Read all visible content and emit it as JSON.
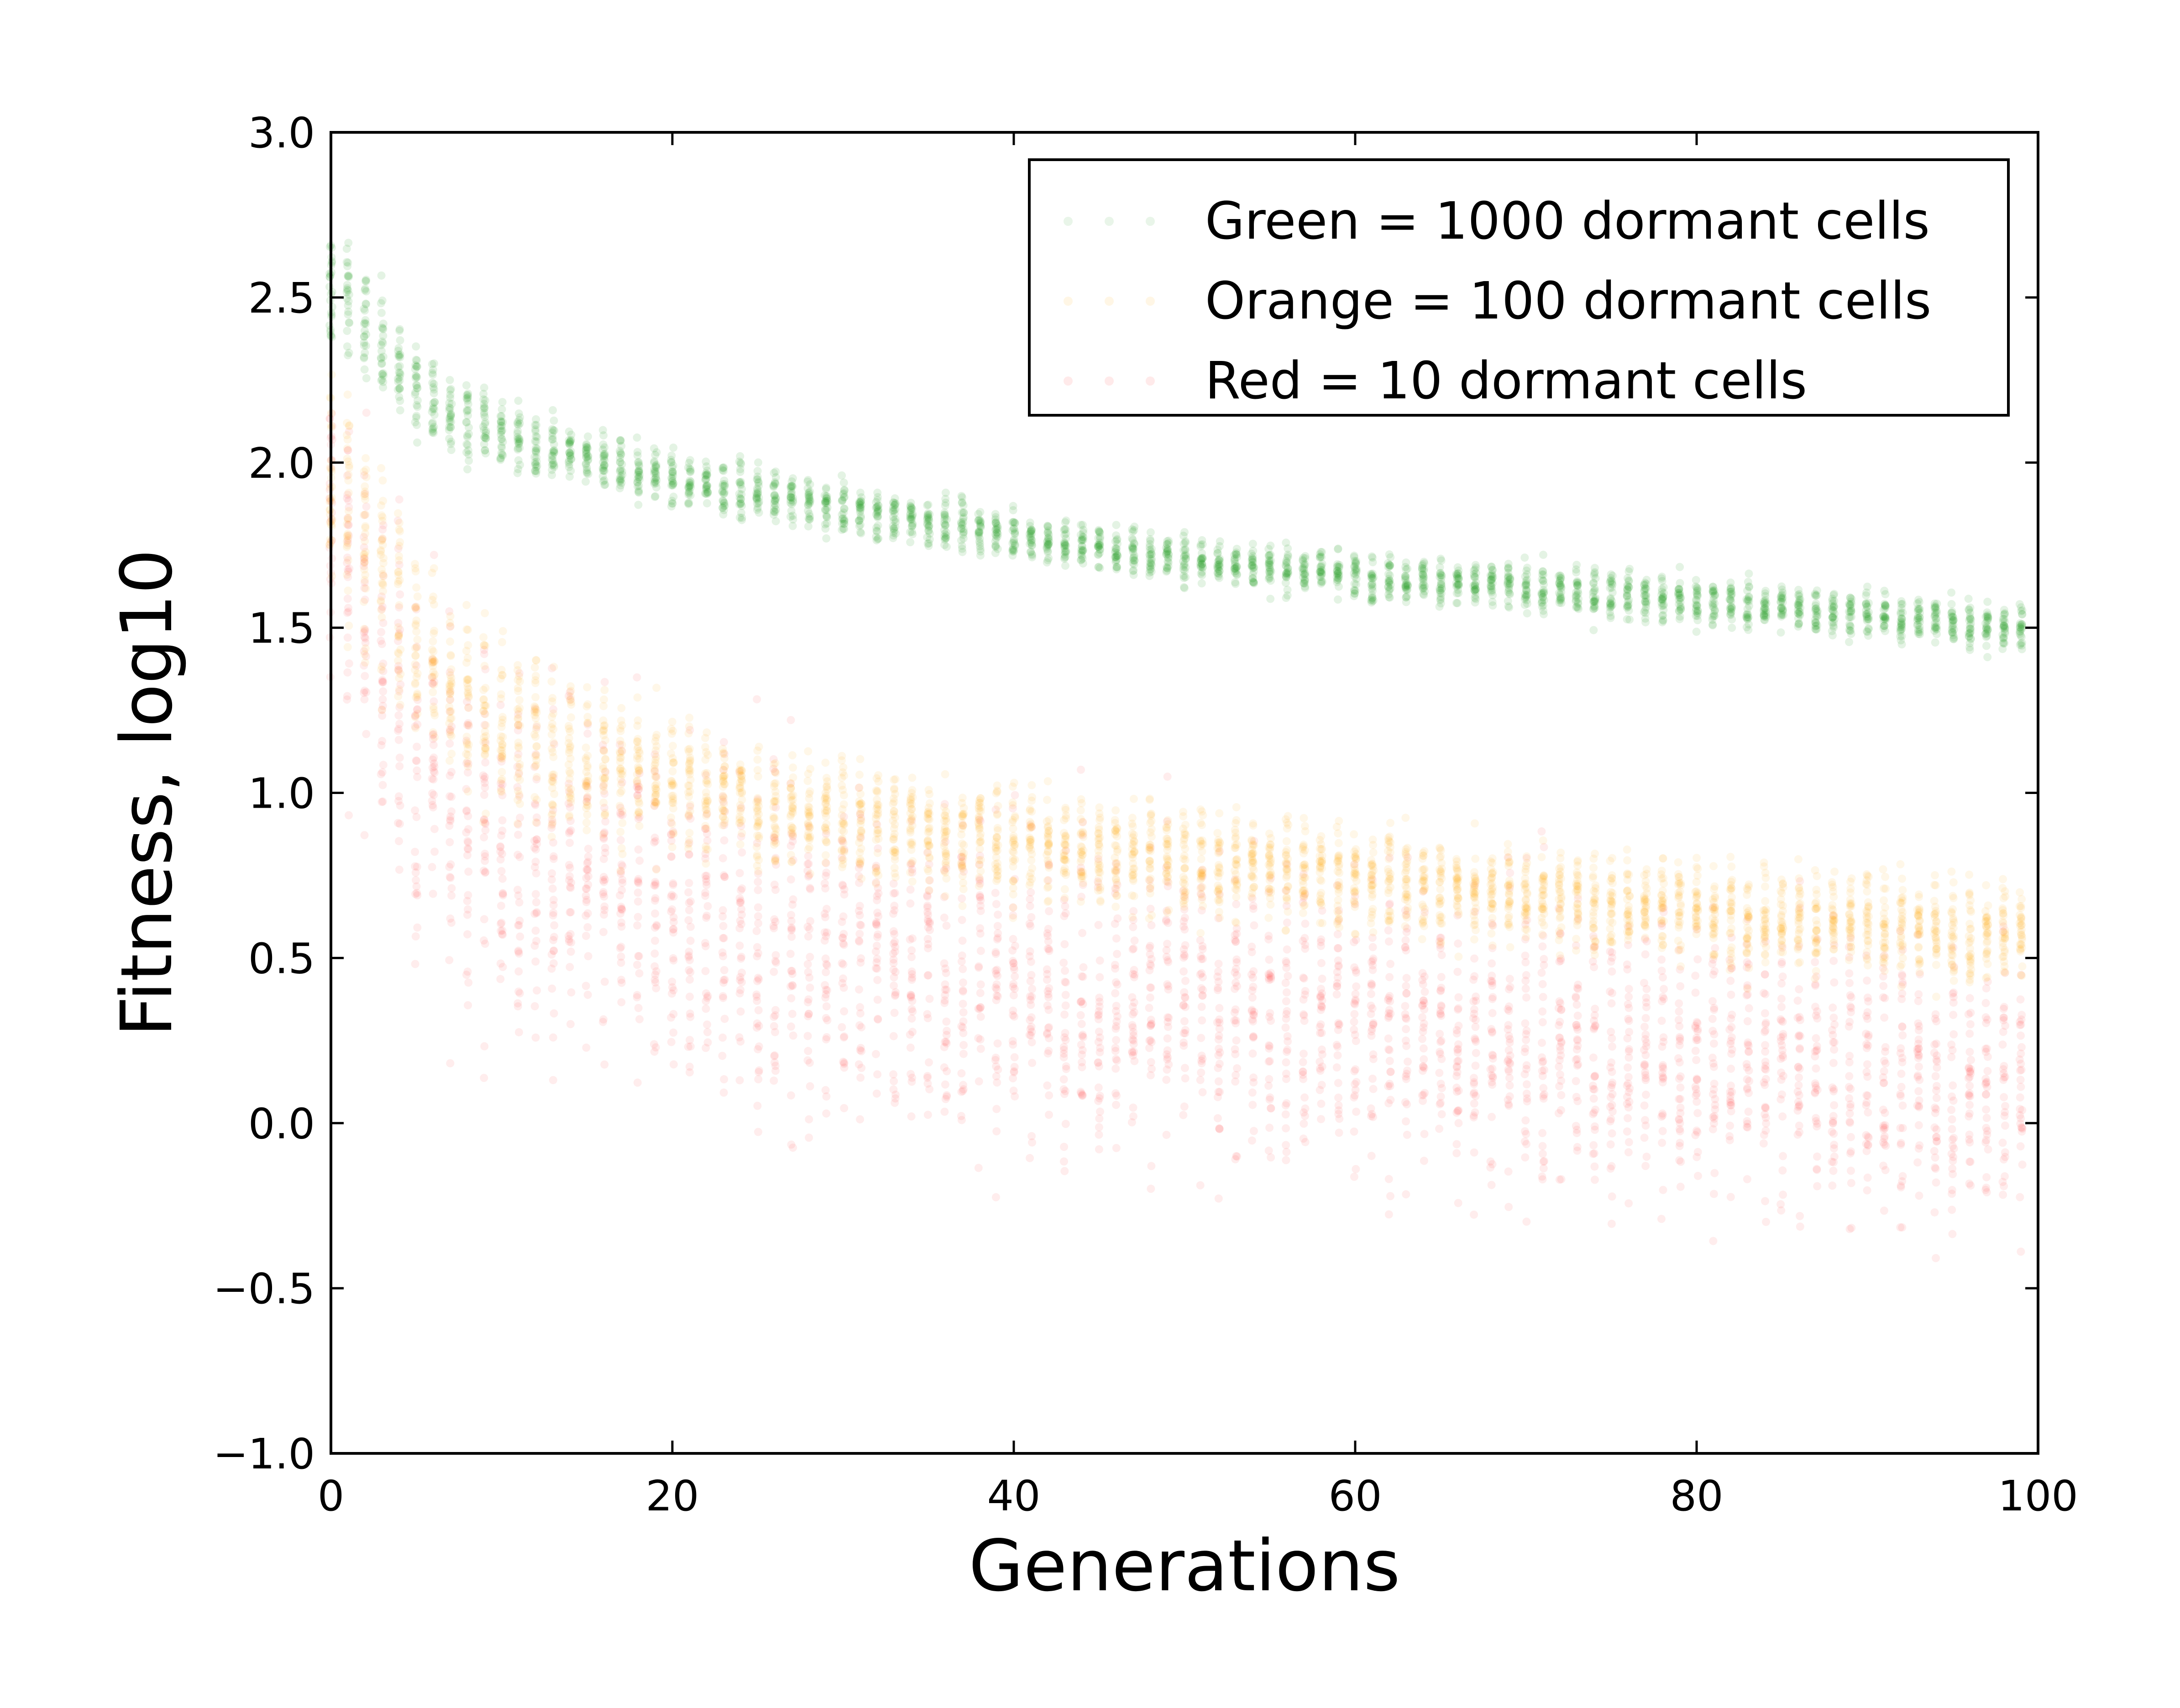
{
  "chart_data": {
    "type": "scatter",
    "title": "",
    "xlabel": "Generations",
    "ylabel": "Fitness, log10",
    "xlim": [
      0,
      100
    ],
    "ylim": [
      -1.0,
      3.0
    ],
    "xticks": [
      0,
      20,
      40,
      60,
      80,
      100
    ],
    "yticks": [
      -1.0,
      -0.5,
      0.0,
      0.5,
      1.0,
      1.5,
      2.0,
      2.5,
      3.0
    ],
    "xtick_labels": [
      "0",
      "20",
      "40",
      "60",
      "80",
      "100"
    ],
    "ytick_labels": [
      "−1.0",
      "−0.5",
      "0.0",
      "0.5",
      "1.0",
      "1.5",
      "2.0",
      "2.5",
      "3.0"
    ],
    "grid": false,
    "legend": {
      "placement": "upper-right",
      "entries": [
        "Green = 1000 dormant cells",
        "Orange = 100 dormant cells",
        "Red = 10 dormant cells"
      ]
    },
    "series": [
      {
        "key": "green",
        "color": "#2ca02c",
        "x": [
          0,
          5,
          10,
          20,
          30,
          40,
          50,
          60,
          70,
          80,
          90,
          99
        ],
        "y_center": [
          2.55,
          2.22,
          2.08,
          1.95,
          1.86,
          1.78,
          1.71,
          1.66,
          1.62,
          1.58,
          1.54,
          1.5
        ],
        "y_spread": [
          0.18,
          0.14,
          0.1,
          0.08,
          0.07,
          0.07,
          0.07,
          0.07,
          0.07,
          0.07,
          0.07,
          0.07
        ]
      },
      {
        "key": "orange",
        "color": "#ffa500",
        "x": [
          0,
          5,
          10,
          20,
          30,
          40,
          50,
          60,
          70,
          80,
          90,
          99
        ],
        "y_center": [
          1.95,
          1.45,
          1.2,
          1.02,
          0.92,
          0.85,
          0.79,
          0.74,
          0.69,
          0.65,
          0.6,
          0.57
        ],
        "y_spread": [
          0.35,
          0.3,
          0.25,
          0.2,
          0.18,
          0.17,
          0.16,
          0.15,
          0.15,
          0.15,
          0.15,
          0.15
        ]
      },
      {
        "key": "red",
        "color": "#ff3333",
        "x": [
          0,
          5,
          10,
          20,
          30,
          40,
          50,
          60,
          70,
          80,
          90,
          99
        ],
        "y_center": [
          1.8,
          1.1,
          0.8,
          0.62,
          0.5,
          0.42,
          0.35,
          0.3,
          0.25,
          0.2,
          0.14,
          0.1
        ],
        "y_spread": [
          0.55,
          0.55,
          0.55,
          0.5,
          0.48,
          0.47,
          0.45,
          0.45,
          0.45,
          0.42,
          0.42,
          0.42
        ]
      }
    ]
  }
}
